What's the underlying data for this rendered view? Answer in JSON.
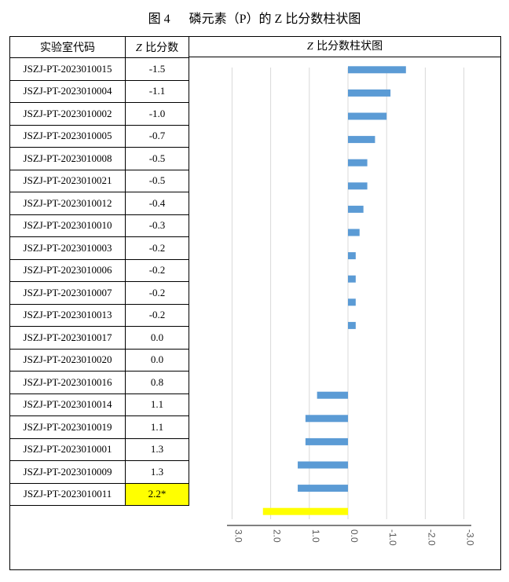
{
  "caption": {
    "figure_no": "图 4",
    "title": "磷元素（P）的 Z 比分数柱状图"
  },
  "table": {
    "header_code": "实验室代码",
    "header_z_var": "Z",
    "header_z_rest": " 比分数",
    "header_chart_var": "Z",
    "header_chart_rest": " 比分数柱状图"
  },
  "chart_data": {
    "type": "bar",
    "orientation": "horizontal",
    "categories": [
      "JSZJ-PT-2023010015",
      "JSZJ-PT-2023010004",
      "JSZJ-PT-2023010002",
      "JSZJ-PT-2023010005",
      "JSZJ-PT-2023010008",
      "JSZJ-PT-2023010021",
      "JSZJ-PT-2023010012",
      "JSZJ-PT-2023010010",
      "JSZJ-PT-2023010003",
      "JSZJ-PT-2023010006",
      "JSZJ-PT-2023010007",
      "JSZJ-PT-2023010013",
      "JSZJ-PT-2023010017",
      "JSZJ-PT-2023010020",
      "JSZJ-PT-2023010016",
      "JSZJ-PT-2023010014",
      "JSZJ-PT-2023010019",
      "JSZJ-PT-2023010001",
      "JSZJ-PT-2023010009",
      "JSZJ-PT-2023010011"
    ],
    "values": [
      -1.5,
      -1.1,
      -1.0,
      -0.7,
      -0.5,
      -0.5,
      -0.4,
      -0.3,
      -0.2,
      -0.2,
      -0.2,
      -0.2,
      0.0,
      0.0,
      0.8,
      1.1,
      1.1,
      1.3,
      1.3,
      2.2
    ],
    "value_labels": [
      "-1.5",
      "-1.1",
      "-1.0",
      "-0.7",
      "-0.5",
      "-0.5",
      "-0.4",
      "-0.3",
      "-0.2",
      "-0.2",
      "-0.2",
      "-0.2",
      "0.0",
      "0.0",
      "0.8",
      "1.1",
      "1.1",
      "1.3",
      "1.3",
      "2.2*"
    ],
    "flagged_index": 19,
    "axis_reversed": true,
    "xlim": [
      3.0,
      -3.0
    ],
    "xticks": [
      "3.0",
      "2.0",
      "1.0",
      "0.0",
      "-1.0",
      "-2.0",
      "-3.0"
    ],
    "tick_values": [
      3,
      2,
      1,
      0,
      -1,
      -2,
      -3
    ],
    "grid": true,
    "colors": {
      "bar": "#5b9bd5",
      "flagged_bar": "#ffff00",
      "flagged_cell": "#ffff00",
      "grid": "#d9d9d9"
    }
  }
}
